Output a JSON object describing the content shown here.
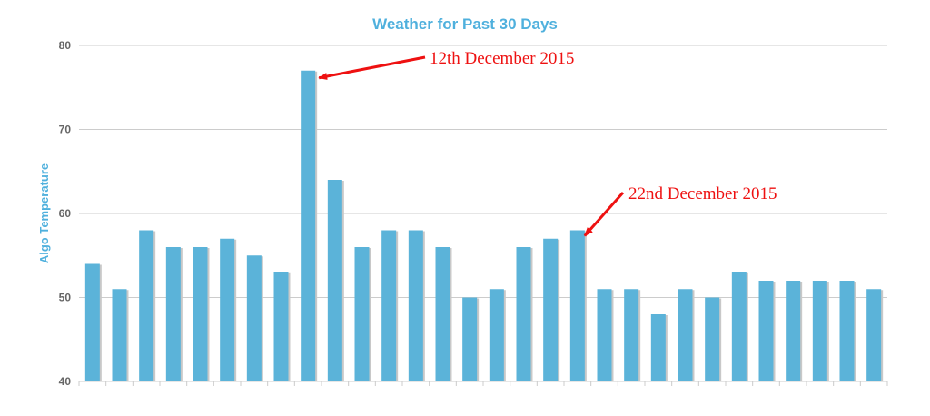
{
  "chart_data": {
    "type": "bar",
    "title": "Weather for Past 30 Days",
    "xlabel": "",
    "ylabel": "Algo Temperature",
    "ylim": [
      40,
      80
    ],
    "yticks": [
      40,
      50,
      60,
      70,
      80
    ],
    "grid": true,
    "values": [
      54,
      51,
      58,
      56,
      56,
      57,
      55,
      53,
      77,
      64,
      56,
      58,
      58,
      56,
      50,
      51,
      56,
      57,
      58,
      51,
      51,
      48,
      51,
      50,
      53,
      52,
      52,
      52,
      52,
      51
    ],
    "annotations": [
      {
        "text": "12th December 2015",
        "bar_index": 8
      },
      {
        "text": "22nd December 2015",
        "bar_index": 18
      }
    ]
  },
  "colors": {
    "bar": "#5bb3d9",
    "bar_shadow": "#c8c8c8",
    "title": "#4fb0dd",
    "ylabel": "#4fb0dd",
    "grid": "#cccccc",
    "annotation": "#ee1111"
  }
}
